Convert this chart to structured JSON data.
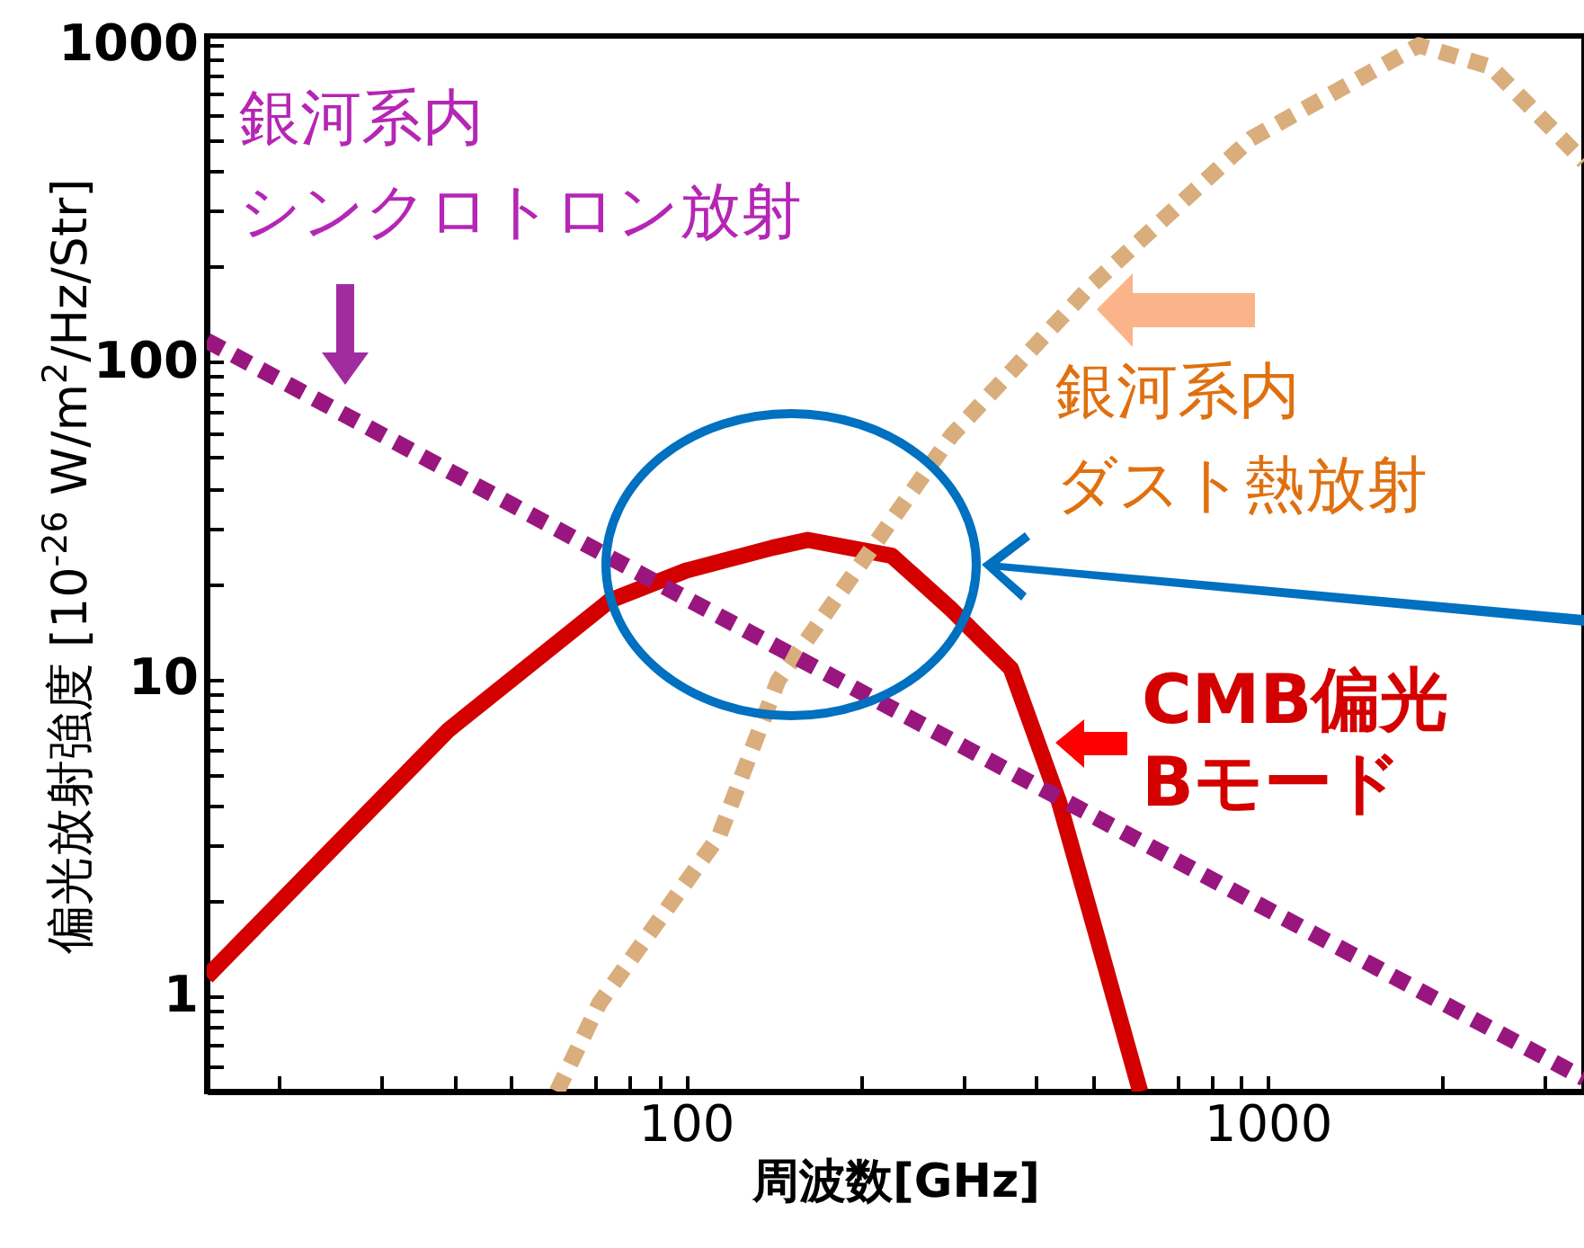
{
  "chart_data": {
    "type": "line",
    "xlabel": "周波数[GHz]",
    "ylabel": "偏光放射強度 [10$^{-26}$ W/m$^{2}$/Hz/Str]",
    "log": "xy",
    "xlim": [
      15,
      3500
    ],
    "ylim": [
      0.5,
      1070
    ],
    "xticks": [
      {
        "value": 20,
        "label": null
      },
      {
        "value": 30,
        "label": null
      },
      {
        "value": 40,
        "label": null
      },
      {
        "value": 50,
        "label": null
      },
      {
        "value": 60,
        "label": null
      },
      {
        "value": 70,
        "label": null
      },
      {
        "value": 80,
        "label": null
      },
      {
        "value": 90,
        "label": null
      },
      100,
      {
        "value": 200,
        "label": null
      },
      {
        "value": 300,
        "label": null
      },
      {
        "value": 400,
        "label": null
      },
      {
        "value": 500,
        "label": null
      },
      {
        "value": 600,
        "label": null
      },
      {
        "value": 700,
        "label": null
      },
      {
        "value": 800,
        "label": null
      },
      {
        "value": 900,
        "label": null
      },
      1000,
      {
        "value": 2000,
        "label": null
      },
      {
        "value": 3000,
        "label": null
      }
    ],
    "yticks": [
      {
        "value": 0.5,
        "label": null
      },
      {
        "value": 0.6,
        "label": null
      },
      {
        "value": 0.7,
        "label": null
      },
      {
        "value": 0.8,
        "label": null
      },
      {
        "value": 0.9,
        "label": null
      },
      1,
      {
        "value": 2,
        "label": null
      },
      {
        "value": 3,
        "label": null
      },
      {
        "value": 4,
        "label": null
      },
      {
        "value": 5,
        "label": null
      },
      {
        "value": 6,
        "label": null
      },
      {
        "value": 7,
        "label": null
      },
      {
        "value": 8,
        "label": null
      },
      {
        "value": 9,
        "label": null
      },
      10,
      {
        "value": 20,
        "label": null
      },
      {
        "value": 30,
        "label": null
      },
      {
        "value": 40,
        "label": null
      },
      {
        "value": 50,
        "label": null
      },
      {
        "value": 60,
        "label": null
      },
      {
        "value": 70,
        "label": null
      },
      {
        "value": 80,
        "label": null
      },
      {
        "value": 90,
        "label": null
      },
      100,
      {
        "value": 200,
        "label": null
      },
      {
        "value": 300,
        "label": null
      },
      {
        "value": 400,
        "label": null
      },
      {
        "value": 500,
        "label": null
      },
      {
        "value": 600,
        "label": null
      },
      {
        "value": 700,
        "label": null
      },
      {
        "value": 800,
        "label": null
      },
      {
        "value": 900,
        "label": null
      },
      1000
    ],
    "grid": false,
    "marker": "none",
    "series": [
      {
        "name": "CMB偏光Bモード",
        "color": "#d40000",
        "line_style": "solid",
        "x": [
          15,
          39,
          74,
          100,
          141,
          162,
          226,
          286,
          362,
          438,
          506,
          604
        ],
        "values": [
          1.15,
          6.9,
          17.7,
          22,
          26,
          27.5,
          24.5,
          16.6,
          10.8,
          4.1,
          1.6,
          0.5
        ]
      },
      {
        "name": "銀河系内ダスト熱放射",
        "color": "#d9ad7c",
        "line_style": "dashed",
        "x": [
          60,
          71,
          114,
          144,
          286,
          495,
          937,
          1820,
          2420,
          3500
        ],
        "values": [
          0.5,
          0.95,
          3.2,
          9.9,
          58.6,
          173,
          508,
          1000,
          855,
          430
        ]
      },
      {
        "name": "銀河系内シンクロトロン放射",
        "color": "#99167f",
        "line_style": "dashed",
        "x": [
          15,
          100,
          3500
        ],
        "values": [
          117,
          18,
          0.55
        ]
      }
    ]
  }
}
